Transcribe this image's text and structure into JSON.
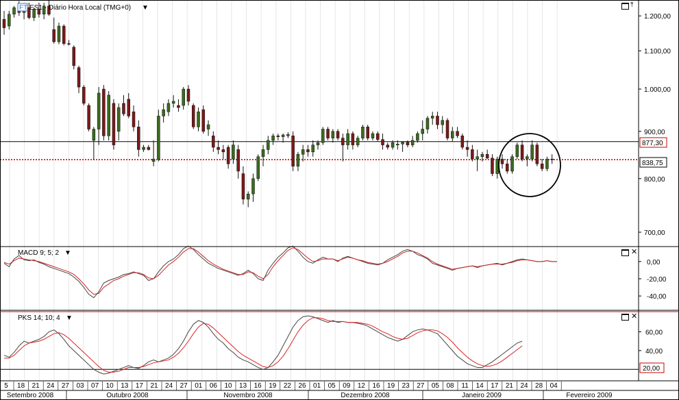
{
  "header": {
    "badge": "FT",
    "title": "ES1 - Diário Hora Local (TMG+0)"
  },
  "colors": {
    "up": "#3a6b1e",
    "down": "#7a1a1a",
    "macd_line": "#444444",
    "macd_signal": "#cc2222",
    "stoch_k": "#444444",
    "stoch_d": "#dd2222",
    "level_line": "#cc0000",
    "macd_label": "#1a7a1a",
    "pks_label": "#cc2222"
  },
  "price_panel": {
    "y_ticks": [
      "1.200,00",
      "1.100,00",
      "1.000,00",
      "900,00",
      "800,00",
      "700,00"
    ],
    "last_price": "838,75",
    "marked_level": "877,30"
  },
  "macd_panel": {
    "label": "MACD 9; 5; 2",
    "y_ticks": [
      "0,00",
      "-20,00",
      "-40,00"
    ]
  },
  "pks_panel": {
    "label": "PKS 14; 10; 4",
    "y_ticks": [
      "60,00",
      "40,00"
    ],
    "level": "20,00"
  },
  "x_axis": {
    "day_labels": [
      "5",
      "18",
      "21",
      "24",
      "27",
      "03",
      "07",
      "10",
      "13",
      "17",
      "21",
      "24",
      "27",
      "01",
      "06",
      "10",
      "13",
      "16",
      "19",
      "22",
      "26",
      "01",
      "05",
      "09",
      "12",
      "16",
      "19",
      "23",
      "27",
      "05",
      "08",
      "11",
      "14",
      "17",
      "21",
      "24",
      "28",
      "04"
    ],
    "month_labels": [
      "Setembro 2008",
      "Outubro 2008",
      "Novembro 2008",
      "Dezembro 2008",
      "Janeiro 2009",
      "Fevereiro 2009"
    ]
  },
  "chart_data": {
    "type": "candlestick",
    "title": "ES1 - Diário Hora Local (TMG+0)",
    "y_scale": "log",
    "ylim": [
      680,
      1240
    ],
    "horizontal_levels": [
      877.3,
      838.75
    ],
    "candles": [
      {
        "o": 1190,
        "h": 1215,
        "l": 1145,
        "c": 1165
      },
      {
        "o": 1170,
        "h": 1215,
        "l": 1160,
        "c": 1205
      },
      {
        "o": 1205,
        "h": 1230,
        "l": 1195,
        "c": 1225
      },
      {
        "o": 1225,
        "h": 1245,
        "l": 1200,
        "c": 1210
      },
      {
        "o": 1210,
        "h": 1235,
        "l": 1190,
        "c": 1225
      },
      {
        "o": 1225,
        "h": 1240,
        "l": 1190,
        "c": 1195
      },
      {
        "o": 1195,
        "h": 1225,
        "l": 1185,
        "c": 1220
      },
      {
        "o": 1220,
        "h": 1240,
        "l": 1195,
        "c": 1205
      },
      {
        "o": 1205,
        "h": 1240,
        "l": 1190,
        "c": 1230
      },
      {
        "o": 1230,
        "h": 1250,
        "l": 1200,
        "c": 1205
      },
      {
        "o": 1160,
        "h": 1195,
        "l": 1120,
        "c": 1125
      },
      {
        "o": 1125,
        "h": 1180,
        "l": 1118,
        "c": 1170
      },
      {
        "o": 1170,
        "h": 1175,
        "l": 1115,
        "c": 1120
      },
      {
        "o": 1120,
        "h": 1130,
        "l": 1115,
        "c": 1118
      },
      {
        "o": 1110,
        "h": 1115,
        "l": 1050,
        "c": 1060
      },
      {
        "o": 1055,
        "h": 1060,
        "l": 990,
        "c": 1005
      },
      {
        "o": 1005,
        "h": 1010,
        "l": 960,
        "c": 965
      },
      {
        "o": 960,
        "h": 965,
        "l": 900,
        "c": 905
      },
      {
        "o": 880,
        "h": 910,
        "l": 838,
        "c": 905
      },
      {
        "o": 905,
        "h": 1005,
        "l": 870,
        "c": 990
      },
      {
        "o": 1000,
        "h": 1010,
        "l": 880,
        "c": 890
      },
      {
        "o": 890,
        "h": 995,
        "l": 880,
        "c": 985
      },
      {
        "o": 965,
        "h": 975,
        "l": 860,
        "c": 870
      },
      {
        "o": 900,
        "h": 965,
        "l": 880,
        "c": 955
      },
      {
        "o": 965,
        "h": 985,
        "l": 935,
        "c": 940
      },
      {
        "o": 975,
        "h": 990,
        "l": 930,
        "c": 935
      },
      {
        "o": 945,
        "h": 960,
        "l": 900,
        "c": 910
      },
      {
        "o": 910,
        "h": 925,
        "l": 845,
        "c": 860
      },
      {
        "o": 860,
        "h": 870,
        "l": 855,
        "c": 865
      },
      {
        "o": 865,
        "h": 870,
        "l": 858,
        "c": 860
      },
      {
        "o": 835,
        "h": 880,
        "l": 825,
        "c": 840
      },
      {
        "o": 840,
        "h": 950,
        "l": 835,
        "c": 935
      },
      {
        "o": 935,
        "h": 965,
        "l": 920,
        "c": 950
      },
      {
        "o": 945,
        "h": 975,
        "l": 935,
        "c": 965
      },
      {
        "o": 965,
        "h": 985,
        "l": 955,
        "c": 970
      },
      {
        "o": 960,
        "h": 975,
        "l": 945,
        "c": 955
      },
      {
        "o": 960,
        "h": 1005,
        "l": 950,
        "c": 1000
      },
      {
        "o": 1000,
        "h": 1010,
        "l": 960,
        "c": 970
      },
      {
        "o": 960,
        "h": 965,
        "l": 905,
        "c": 910
      },
      {
        "o": 910,
        "h": 955,
        "l": 900,
        "c": 945
      },
      {
        "o": 950,
        "h": 960,
        "l": 895,
        "c": 900
      },
      {
        "o": 905,
        "h": 925,
        "l": 890,
        "c": 915
      },
      {
        "o": 890,
        "h": 900,
        "l": 855,
        "c": 865
      },
      {
        "o": 865,
        "h": 880,
        "l": 850,
        "c": 860
      },
      {
        "o": 860,
        "h": 870,
        "l": 840,
        "c": 855
      },
      {
        "o": 865,
        "h": 870,
        "l": 820,
        "c": 830
      },
      {
        "o": 840,
        "h": 880,
        "l": 830,
        "c": 870
      },
      {
        "o": 860,
        "h": 870,
        "l": 800,
        "c": 815
      },
      {
        "o": 810,
        "h": 825,
        "l": 750,
        "c": 760
      },
      {
        "o": 760,
        "h": 775,
        "l": 745,
        "c": 770
      },
      {
        "o": 770,
        "h": 810,
        "l": 755,
        "c": 800
      },
      {
        "o": 800,
        "h": 850,
        "l": 795,
        "c": 845
      },
      {
        "o": 845,
        "h": 870,
        "l": 825,
        "c": 860
      },
      {
        "o": 860,
        "h": 890,
        "l": 850,
        "c": 880
      },
      {
        "o": 880,
        "h": 895,
        "l": 870,
        "c": 890
      },
      {
        "o": 890,
        "h": 895,
        "l": 880,
        "c": 888
      },
      {
        "o": 888,
        "h": 895,
        "l": 875,
        "c": 892
      },
      {
        "o": 890,
        "h": 898,
        "l": 885,
        "c": 893
      },
      {
        "o": 890,
        "h": 900,
        "l": 815,
        "c": 825
      },
      {
        "o": 825,
        "h": 855,
        "l": 815,
        "c": 850
      },
      {
        "o": 850,
        "h": 870,
        "l": 835,
        "c": 860
      },
      {
        "o": 860,
        "h": 870,
        "l": 845,
        "c": 855
      },
      {
        "o": 855,
        "h": 880,
        "l": 845,
        "c": 870
      },
      {
        "o": 870,
        "h": 880,
        "l": 860,
        "c": 875
      },
      {
        "o": 875,
        "h": 910,
        "l": 870,
        "c": 905
      },
      {
        "o": 905,
        "h": 910,
        "l": 880,
        "c": 885
      },
      {
        "o": 885,
        "h": 905,
        "l": 875,
        "c": 900
      },
      {
        "o": 900,
        "h": 905,
        "l": 880,
        "c": 885
      },
      {
        "o": 885,
        "h": 895,
        "l": 835,
        "c": 870
      },
      {
        "o": 870,
        "h": 905,
        "l": 860,
        "c": 895
      },
      {
        "o": 895,
        "h": 900,
        "l": 860,
        "c": 870
      },
      {
        "o": 870,
        "h": 890,
        "l": 865,
        "c": 885
      },
      {
        "o": 885,
        "h": 915,
        "l": 880,
        "c": 910
      },
      {
        "o": 910,
        "h": 915,
        "l": 880,
        "c": 885
      },
      {
        "o": 885,
        "h": 900,
        "l": 880,
        "c": 895
      },
      {
        "o": 895,
        "h": 900,
        "l": 878,
        "c": 882
      },
      {
        "o": 882,
        "h": 895,
        "l": 860,
        "c": 870
      },
      {
        "o": 870,
        "h": 875,
        "l": 860,
        "c": 865
      },
      {
        "o": 865,
        "h": 880,
        "l": 860,
        "c": 875
      },
      {
        "o": 870,
        "h": 880,
        "l": 860,
        "c": 872
      },
      {
        "o": 872,
        "h": 878,
        "l": 855,
        "c": 876
      },
      {
        "o": 876,
        "h": 880,
        "l": 865,
        "c": 870
      },
      {
        "o": 870,
        "h": 890,
        "l": 865,
        "c": 880
      },
      {
        "o": 880,
        "h": 900,
        "l": 875,
        "c": 895
      },
      {
        "o": 895,
        "h": 925,
        "l": 880,
        "c": 905
      },
      {
        "o": 905,
        "h": 935,
        "l": 895,
        "c": 930
      },
      {
        "o": 930,
        "h": 945,
        "l": 915,
        "c": 935
      },
      {
        "o": 935,
        "h": 945,
        "l": 905,
        "c": 915
      },
      {
        "o": 915,
        "h": 935,
        "l": 895,
        "c": 925
      },
      {
        "o": 925,
        "h": 930,
        "l": 880,
        "c": 885
      },
      {
        "o": 885,
        "h": 910,
        "l": 878,
        "c": 900
      },
      {
        "o": 900,
        "h": 910,
        "l": 885,
        "c": 890
      },
      {
        "o": 890,
        "h": 895,
        "l": 860,
        "c": 865
      },
      {
        "o": 865,
        "h": 880,
        "l": 845,
        "c": 860
      },
      {
        "o": 860,
        "h": 870,
        "l": 835,
        "c": 840
      },
      {
        "o": 840,
        "h": 860,
        "l": 815,
        "c": 845
      },
      {
        "o": 845,
        "h": 855,
        "l": 835,
        "c": 850
      },
      {
        "o": 850,
        "h": 860,
        "l": 840,
        "c": 842
      },
      {
        "o": 842,
        "h": 850,
        "l": 805,
        "c": 810
      },
      {
        "o": 810,
        "h": 845,
        "l": 800,
        "c": 840
      },
      {
        "o": 840,
        "h": 850,
        "l": 820,
        "c": 830
      },
      {
        "o": 830,
        "h": 840,
        "l": 810,
        "c": 815
      },
      {
        "o": 815,
        "h": 850,
        "l": 810,
        "c": 845
      },
      {
        "o": 845,
        "h": 875,
        "l": 840,
        "c": 870
      },
      {
        "o": 870,
        "h": 880,
        "l": 835,
        "c": 840
      },
      {
        "o": 840,
        "h": 850,
        "l": 825,
        "c": 845
      },
      {
        "o": 840,
        "h": 880,
        "l": 835,
        "c": 870
      },
      {
        "o": 870,
        "h": 875,
        "l": 825,
        "c": 830
      },
      {
        "o": 830,
        "h": 840,
        "l": 815,
        "c": 820
      },
      {
        "o": 820,
        "h": 845,
        "l": 815,
        "c": 840
      },
      {
        "o": 840,
        "h": 850,
        "l": 830,
        "c": 838.75
      }
    ],
    "macd": {
      "ylim": [
        -55,
        15
      ],
      "series": [
        {
          "name": "MACD",
          "values": [
            -2,
            -6,
            3,
            7,
            2,
            1,
            2,
            -1,
            -3,
            -6,
            -8,
            -10,
            -12,
            -14,
            -18,
            -23,
            -30,
            -38,
            -42,
            -35,
            -25,
            -22,
            -20,
            -18,
            -15,
            -14,
            -12,
            -14,
            -16,
            -22,
            -20,
            -12,
            -5,
            0,
            3,
            8,
            15,
            18,
            14,
            8,
            3,
            -2,
            -5,
            -8,
            -10,
            -12,
            -14,
            -16,
            -14,
            -10,
            -14,
            -20,
            -22,
            -10,
            -2,
            5,
            10,
            16,
            18,
            12,
            5,
            0,
            -2,
            2,
            5,
            3,
            3,
            0,
            4,
            6,
            4,
            2,
            0,
            -2,
            -3,
            -4,
            -2,
            2,
            5,
            8,
            12,
            14,
            12,
            8,
            6,
            3,
            -2,
            -4,
            -6,
            -8,
            -10,
            -8,
            -7,
            -6,
            -5,
            -7,
            -5,
            -4,
            -3,
            -2,
            -4,
            -2,
            0,
            2,
            3,
            2,
            1,
            0,
            0,
            1,
            0,
            0
          ]
        },
        {
          "name": "Signal",
          "values": [
            -1,
            -3,
            1,
            4,
            3,
            2,
            1,
            0,
            -2,
            -4,
            -6,
            -8,
            -10,
            -12,
            -15,
            -20,
            -26,
            -33,
            -38,
            -37,
            -30,
            -26,
            -22,
            -20,
            -17,
            -15,
            -13,
            -13,
            -15,
            -19,
            -20,
            -16,
            -10,
            -4,
            0,
            5,
            11,
            15,
            15,
            11,
            6,
            1,
            -3,
            -6,
            -9,
            -11,
            -13,
            -15,
            -15,
            -12,
            -13,
            -17,
            -20,
            -15,
            -6,
            1,
            7,
            13,
            16,
            14,
            9,
            4,
            0,
            1,
            3,
            3,
            3,
            1,
            3,
            5,
            4,
            2,
            1,
            -1,
            -2,
            -3,
            -2,
            0,
            3,
            6,
            10,
            12,
            12,
            10,
            7,
            4,
            0,
            -3,
            -5,
            -7,
            -9,
            -8,
            -7,
            -6,
            -5,
            -6,
            -5,
            -4,
            -3,
            -3,
            -3,
            -2,
            -1,
            1,
            2,
            2,
            1,
            0,
            0,
            1,
            0,
            0
          ]
        }
      ]
    },
    "stochastic": {
      "ylim": [
        10,
        80
      ],
      "level": 20,
      "series": [
        {
          "name": "%K",
          "values": [
            35,
            33,
            38,
            45,
            50,
            48,
            50,
            52,
            55,
            60,
            62,
            58,
            52,
            45,
            40,
            35,
            30,
            25,
            20,
            17,
            15,
            16,
            18,
            20,
            22,
            24,
            22,
            21,
            24,
            28,
            30,
            28,
            30,
            32,
            36,
            42,
            50,
            60,
            68,
            72,
            70,
            65,
            58,
            52,
            48,
            42,
            38,
            33,
            30,
            28,
            25,
            22,
            20,
            22,
            28,
            35,
            45,
            55,
            65,
            72,
            76,
            77,
            76,
            74,
            72,
            70,
            72,
            70,
            71,
            70,
            70,
            69,
            68,
            66,
            63,
            60,
            57,
            54,
            52,
            50,
            52,
            56,
            60,
            62,
            63,
            62,
            60,
            58,
            52,
            46,
            40,
            34,
            30,
            26,
            24,
            22,
            22,
            25,
            28,
            32,
            36,
            40,
            44,
            48,
            50
          ]
        },
        {
          "name": "%D",
          "values": [
            32,
            32,
            35,
            40,
            45,
            48,
            49,
            50,
            52,
            55,
            58,
            59,
            57,
            53,
            48,
            43,
            38,
            33,
            28,
            23,
            19,
            17,
            17,
            18,
            20,
            22,
            22,
            22,
            23,
            25,
            27,
            28,
            29,
            30,
            33,
            37,
            43,
            50,
            58,
            65,
            69,
            68,
            64,
            59,
            54,
            49,
            44,
            39,
            35,
            32,
            29,
            26,
            23,
            22,
            24,
            28,
            34,
            42,
            51,
            60,
            67,
            72,
            75,
            75,
            74,
            72,
            71,
            71,
            71,
            70,
            70,
            70,
            69,
            68,
            66,
            63,
            60,
            58,
            55,
            53,
            52,
            53,
            56,
            59,
            61,
            62,
            62,
            61,
            58,
            54,
            49,
            43,
            38,
            33,
            29,
            26,
            24,
            23,
            24,
            26,
            29,
            33,
            37,
            41,
            45
          ]
        }
      ]
    }
  }
}
